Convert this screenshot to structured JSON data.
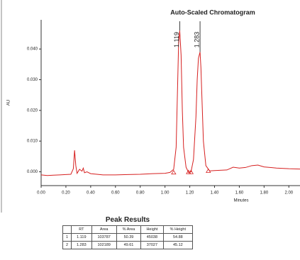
{
  "chart_data": {
    "type": "line",
    "title": "Auto-Scaled Chromatogram",
    "y_label": "AU",
    "x_label": "Minutes",
    "x": [
      0,
      0.05,
      0.1,
      0.15,
      0.2,
      0.24,
      0.26,
      0.27,
      0.28,
      0.29,
      0.31,
      0.33,
      0.34,
      0.35,
      0.37,
      0.4,
      0.5,
      0.6,
      0.7,
      0.8,
      0.9,
      1.0,
      1.04,
      1.07,
      1.09,
      1.1,
      1.11,
      1.119,
      1.13,
      1.14,
      1.15,
      1.17,
      1.19,
      1.21,
      1.23,
      1.25,
      1.26,
      1.27,
      1.283,
      1.29,
      1.3,
      1.31,
      1.33,
      1.36,
      1.4,
      1.5,
      1.55,
      1.6,
      1.65,
      1.7,
      1.75,
      1.8,
      1.9,
      2.0,
      2.09
    ],
    "series": [
      {
        "color": "#d62020",
        "values": [
          -0.001,
          -0.0012,
          -0.0011,
          -0.001,
          -0.0009,
          -0.0008,
          0.001,
          0.007,
          0.002,
          -0.0005,
          0.0008,
          0.0002,
          0.0012,
          -0.0003,
          0.0,
          -0.0006,
          -0.001,
          -0.001,
          -0.0009,
          -0.0008,
          -0.0006,
          -0.0005,
          -0.0002,
          0.0008,
          0.008,
          0.025,
          0.042,
          0.046,
          0.038,
          0.02,
          0.008,
          0.0015,
          -0.0002,
          0.0,
          0.004,
          0.018,
          0.03,
          0.037,
          0.039,
          0.034,
          0.022,
          0.01,
          0.002,
          0.0003,
          0.0004,
          0.0006,
          0.0015,
          0.0012,
          0.0014,
          0.002,
          0.0022,
          0.0016,
          0.0012,
          0.001,
          0.0009
        ]
      }
    ],
    "peak_labels": [
      1.119,
      1.283
    ],
    "integration_marks": {
      "x": [
        1.07,
        1.19,
        1.21,
        1.35
      ],
      "y": [
        -0.0005,
        -0.0004,
        -0.0004,
        0.0
      ]
    },
    "xlim": [
      0,
      2.09
    ],
    "ylim": [
      -0.0045,
      0.0495
    ],
    "xticks": [
      {
        "value": 0,
        "label": "0.00"
      },
      {
        "value": 0.2,
        "label": "0.20"
      },
      {
        "value": 0.4,
        "label": "0.40"
      },
      {
        "value": 0.6,
        "label": "0.60"
      },
      {
        "value": 0.8,
        "label": "0.80"
      },
      {
        "value": 1.0,
        "label": "1.00"
      },
      {
        "value": 1.2,
        "label": "1.20"
      },
      {
        "value": 1.4,
        "label": "1.40"
      },
      {
        "value": 1.6,
        "label": "1.60"
      },
      {
        "value": 1.8,
        "label": "1.80"
      },
      {
        "value": 2.0,
        "label": "2.00"
      }
    ],
    "yticks": [
      {
        "value": 0,
        "label": "0.000"
      },
      {
        "value": 0.01,
        "label": "0.010"
      },
      {
        "value": 0.02,
        "label": "0.020"
      },
      {
        "value": 0.03,
        "label": "0.030"
      },
      {
        "value": 0.04,
        "label": "0.040"
      }
    ],
    "grid": false
  },
  "table": {
    "title": "Peak Results",
    "header": [
      "RT",
      "Area",
      "% Area",
      "Height",
      "% Height"
    ],
    "rows": [
      [
        "1",
        "1.119",
        "103787",
        "50.39",
        "45038",
        "54.88"
      ],
      [
        "2",
        "1.283",
        "102189",
        "49.61",
        "37027",
        "45.12"
      ]
    ]
  }
}
